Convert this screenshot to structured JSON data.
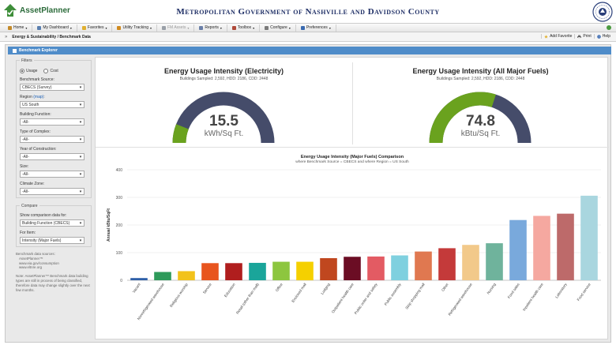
{
  "header": {
    "app_name": "AssetPlanner",
    "org_title": "Metropolitan Government of Nashville and Davidson County",
    "logo_icon": "asset-planner-logo",
    "seal_icon": "city-seal-icon"
  },
  "menu": [
    {
      "label": "Home",
      "icon": "home-icon",
      "color": "#c48a2a",
      "enabled": true
    },
    {
      "label": "My Dashboard",
      "icon": "dashboard-icon",
      "color": "#5a7fb0",
      "enabled": true
    },
    {
      "label": "Favorites",
      "icon": "favorites-icon",
      "color": "#e0b030",
      "enabled": true
    },
    {
      "label": "Utility Tracking",
      "icon": "utility-icon",
      "color": "#d08a20",
      "enabled": true
    },
    {
      "label": "FM Assets",
      "icon": "fm-assets-icon",
      "color": "#9aa0a8",
      "enabled": false
    },
    {
      "label": "Reports",
      "icon": "reports-icon",
      "color": "#6a7fa8",
      "enabled": true
    },
    {
      "label": "Toolbox",
      "icon": "toolbox-icon",
      "color": "#b04a3a",
      "enabled": true
    },
    {
      "label": "Configure",
      "icon": "configure-icon",
      "color": "#7a7a7a",
      "enabled": true
    },
    {
      "label": "Preferences",
      "icon": "preferences-icon",
      "color": "#3a6ab0",
      "enabled": true
    }
  ],
  "breadcrumb": {
    "text": "Energy & Sustainability / Benchmark Data",
    "actions": {
      "add_favorite": "Add Favorite",
      "print": "Print",
      "help": "Help"
    }
  },
  "panel": {
    "title": "Benchmark Explorer"
  },
  "filters": {
    "legend": "Filters",
    "radio_usage": "Usage",
    "radio_cost": "Cost",
    "selected_radio": "usage",
    "fields": [
      {
        "label": "Benchmark Source:",
        "value": "CBECS (Survey)"
      },
      {
        "label": "Region",
        "link": "(map)",
        "suffix": ":",
        "value": "US South"
      },
      {
        "label": "Building Function:",
        "value": "-All-"
      },
      {
        "label": "Type of Complex:",
        "value": "-All-"
      },
      {
        "label": "Year of Construction:",
        "value": "-All-"
      },
      {
        "label": "Size:",
        "value": "-All-"
      },
      {
        "label": "Climate Zone:",
        "value": "-All-"
      }
    ]
  },
  "compare": {
    "legend": "Compare",
    "fields": [
      {
        "label": "Show comparison data for:",
        "value": "Building Function (CBECS)"
      },
      {
        "label": "For Item:",
        "value": "Intensity (Major Fuels)"
      }
    ]
  },
  "notes": {
    "sources_heading": "Benchmark data sources:",
    "sources": [
      "AssetPlanner™",
      "www.eia.gov/consumption",
      "www.eltnre.org"
    ],
    "note": "Note: AssetPlanner™ Benchmark data building types are still in process of being classified, therefore data may change slightly over the next few months."
  },
  "gauges": [
    {
      "title": "Energy Usage Intensity (Electricity)",
      "subtitle": "Buildings Sampled: 2,592, HDD: 2186, CDD: 2448",
      "value": "15.5",
      "unit": "kWh/Sq Ft.",
      "fill_fraction": 0.12,
      "fill_color": "#6aa21e",
      "track_color": "#454c6a"
    },
    {
      "title": "Energy Usage Intensity (All Major Fuels)",
      "subtitle": "Buildings Sampled: 2,592, HDD: 2186, CDD: 2448",
      "value": "74.8",
      "unit": "kBtu/Sq Ft.",
      "fill_fraction": 0.6,
      "fill_color": "#6aa21e",
      "track_color": "#454c6a"
    }
  ],
  "chart_data": {
    "type": "bar",
    "title": "Energy Usage Intensity (Major Fuels) Comparison",
    "subtitle": "where Benchmark Source = CBECS and where Region = US South",
    "ylabel": "Annual kBtu/SqFt",
    "ylim": [
      0,
      400
    ],
    "yticks": [
      0,
      100,
      200,
      300,
      400
    ],
    "grid": true,
    "legend": "none",
    "categories": [
      "Vacant",
      "Nonrefrigerated warehouse",
      "Religious worship",
      "Service",
      "Education",
      "Retail (other than mall)",
      "Office",
      "Enclosed mall",
      "Lodging",
      "Outpatient health care",
      "Public order and safety",
      "Public assembly",
      "Strip shopping mall",
      "Other",
      "Refrigerated warehouse",
      "Nursing",
      "Food sales",
      "Inpatient health care",
      "Laboratory",
      "Food service"
    ],
    "values": [
      8,
      30,
      33,
      62,
      62,
      63,
      67,
      67,
      80,
      85,
      86,
      90,
      104,
      116,
      128,
      134,
      218,
      233,
      241,
      306
    ],
    "colors": [
      "#2e5fa8",
      "#2e9a5a",
      "#f2c21b",
      "#e8551e",
      "#b01e1e",
      "#1aa59a",
      "#8dc63f",
      "#f5d000",
      "#c0471f",
      "#6b0d24",
      "#e35b63",
      "#7fd0df",
      "#e07850",
      "#c43a3a",
      "#f2c98a",
      "#6fb39c",
      "#79a9dc",
      "#f5a8a0",
      "#bd6a6a",
      "#a9d6df"
    ]
  }
}
